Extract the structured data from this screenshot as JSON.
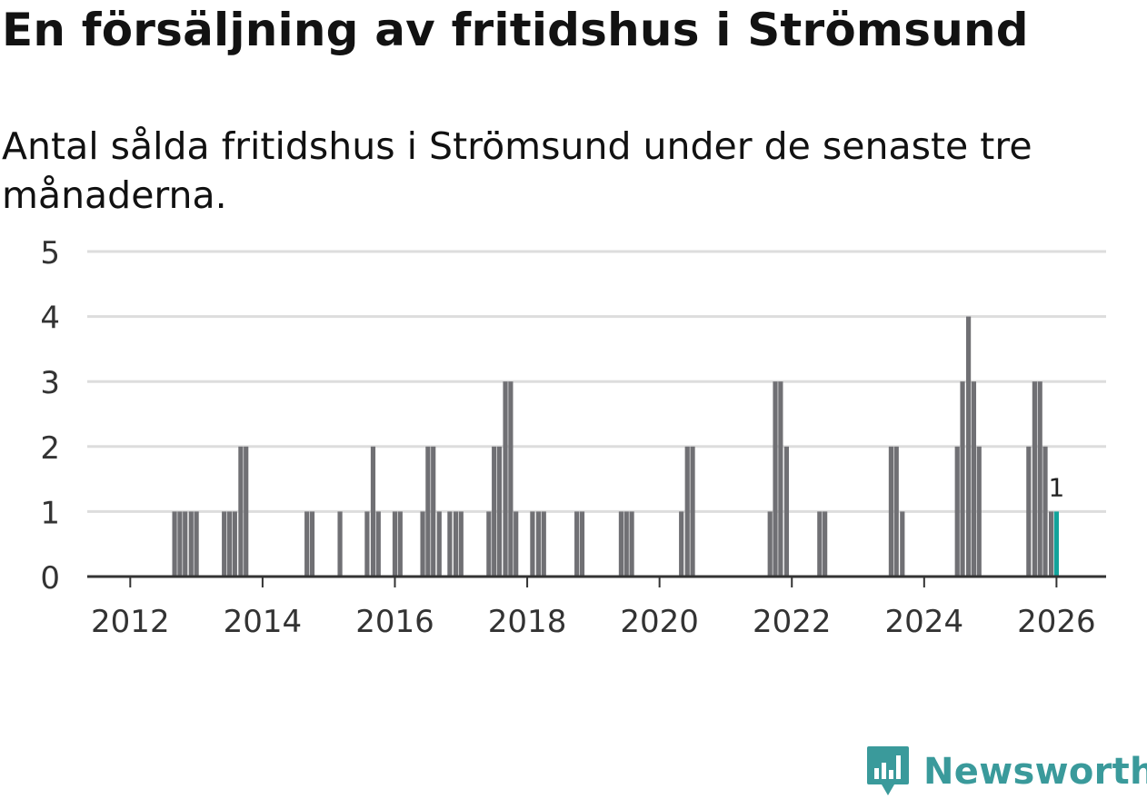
{
  "title": "En försäljning av fritidshus i Strömsund",
  "subtitle": "Antal sålda fritidshus i Strömsund under de senaste tre månaderna.",
  "brand": {
    "name": "Newsworthy",
    "icon": "newsworthy-logo-icon",
    "color": "#3a9a9b"
  },
  "colors": {
    "bar": "#707074",
    "highlight": "#12a39b",
    "grid": "#dddddd",
    "axis": "#333333",
    "text": "#333333"
  },
  "chart_data": {
    "type": "bar",
    "title": "En försäljning av fritidshus i Strömsund",
    "xlabel": "",
    "ylabel": "",
    "ylim": [
      0,
      5
    ],
    "yticks": [
      "0",
      "1",
      "2",
      "3",
      "4",
      "5"
    ],
    "xlim": [
      2011.35,
      2026.75
    ],
    "xticks": [
      "2012",
      "2014",
      "2016",
      "2018",
      "2020",
      "2022",
      "2024",
      "2026"
    ],
    "grid": true,
    "series": [
      {
        "name": "Antal sålda fritidshus",
        "x": [
          2012.67,
          2012.75,
          2012.83,
          2012.92,
          2013.0,
          2013.42,
          2013.5,
          2013.58,
          2013.67,
          2013.75,
          2014.67,
          2014.75,
          2015.17,
          2015.58,
          2015.67,
          2015.75,
          2016.0,
          2016.08,
          2016.42,
          2016.5,
          2016.58,
          2016.67,
          2016.83,
          2016.92,
          2017.0,
          2017.42,
          2017.5,
          2017.58,
          2017.67,
          2017.75,
          2017.83,
          2018.08,
          2018.17,
          2018.25,
          2018.75,
          2018.83,
          2019.42,
          2019.5,
          2019.58,
          2020.33,
          2020.42,
          2020.5,
          2021.67,
          2021.75,
          2021.83,
          2021.92,
          2022.42,
          2022.5,
          2023.5,
          2023.58,
          2023.67,
          2024.5,
          2024.58,
          2024.67,
          2024.75,
          2024.83,
          2025.58,
          2025.67,
          2025.75,
          2025.83,
          2025.92,
          2026.0
        ],
        "values": [
          1,
          1,
          1,
          1,
          1,
          1,
          1,
          1,
          2,
          2,
          1,
          1,
          1,
          1,
          2,
          1,
          1,
          1,
          1,
          2,
          2,
          1,
          1,
          1,
          1,
          1,
          2,
          2,
          3,
          3,
          1,
          1,
          1,
          1,
          1,
          1,
          1,
          1,
          1,
          1,
          2,
          2,
          1,
          3,
          3,
          2,
          1,
          1,
          2,
          2,
          1,
          2,
          3,
          4,
          3,
          2,
          2,
          3,
          3,
          2,
          1,
          1
        ]
      }
    ],
    "highlight": {
      "x": 2026.0,
      "value": 1,
      "label": "1"
    }
  }
}
